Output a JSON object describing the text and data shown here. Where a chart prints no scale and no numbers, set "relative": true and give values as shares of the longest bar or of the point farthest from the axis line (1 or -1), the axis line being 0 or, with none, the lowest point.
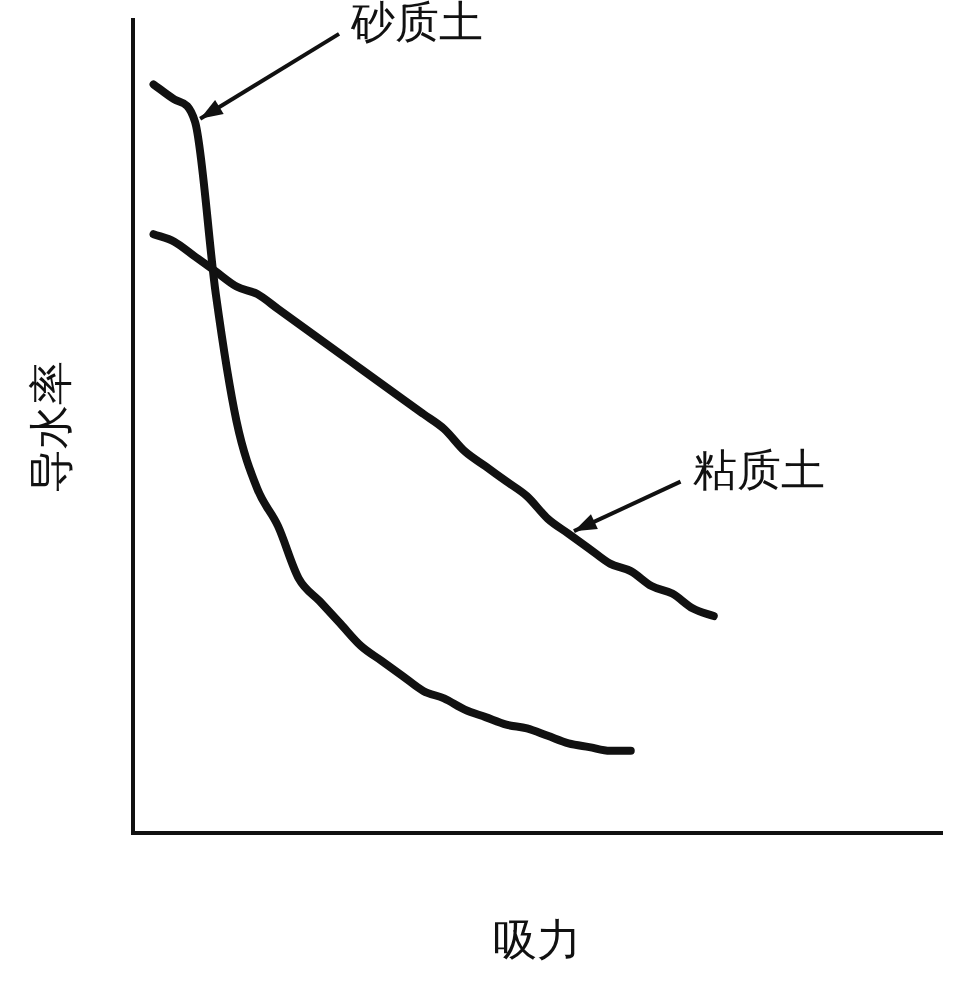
{
  "chart_data": {
    "type": "line",
    "relative": true,
    "xlabel": "吸力",
    "ylabel": "导水率",
    "legend": false,
    "grid": false,
    "marker": "none",
    "line_style": "solid",
    "categories": [
      null,
      null,
      null,
      null,
      null,
      null,
      null,
      null,
      null,
      null,
      null,
      null,
      null,
      null,
      null,
      null,
      null,
      null,
      null,
      null,
      null,
      null,
      null,
      null,
      null,
      null,
      null,
      null,
      null,
      null,
      null,
      null,
      null,
      null,
      null,
      null,
      null,
      null,
      null,
      null
    ],
    "series": [
      {
        "name": "砂质土",
        "color": "#111111",
        "values": [
          null,
          1.0,
          0.98,
          0.95,
          0.72,
          0.55,
          0.46,
          0.41,
          0.34,
          0.31,
          0.28,
          0.25,
          0.23,
          0.21,
          0.19,
          0.18,
          0.165,
          0.155,
          0.145,
          0.14,
          0.13,
          0.12,
          0.115,
          0.11,
          0.11,
          null,
          null,
          null,
          null,
          null,
          null,
          null,
          null,
          null,
          null,
          null,
          null,
          null,
          null,
          null
        ]
      },
      {
        "name": "粘质土",
        "color": "#111111",
        "values": [
          null,
          0.8,
          0.79,
          0.77,
          0.75,
          0.73,
          0.72,
          0.7,
          0.68,
          0.66,
          0.64,
          0.62,
          0.6,
          0.58,
          0.56,
          0.54,
          0.51,
          0.49,
          0.47,
          0.45,
          0.42,
          0.4,
          0.38,
          0.36,
          0.35,
          0.33,
          0.32,
          0.3,
          0.29,
          null,
          null,
          null,
          null,
          null,
          null,
          null,
          null,
          null,
          null,
          null
        ]
      }
    ]
  }
}
